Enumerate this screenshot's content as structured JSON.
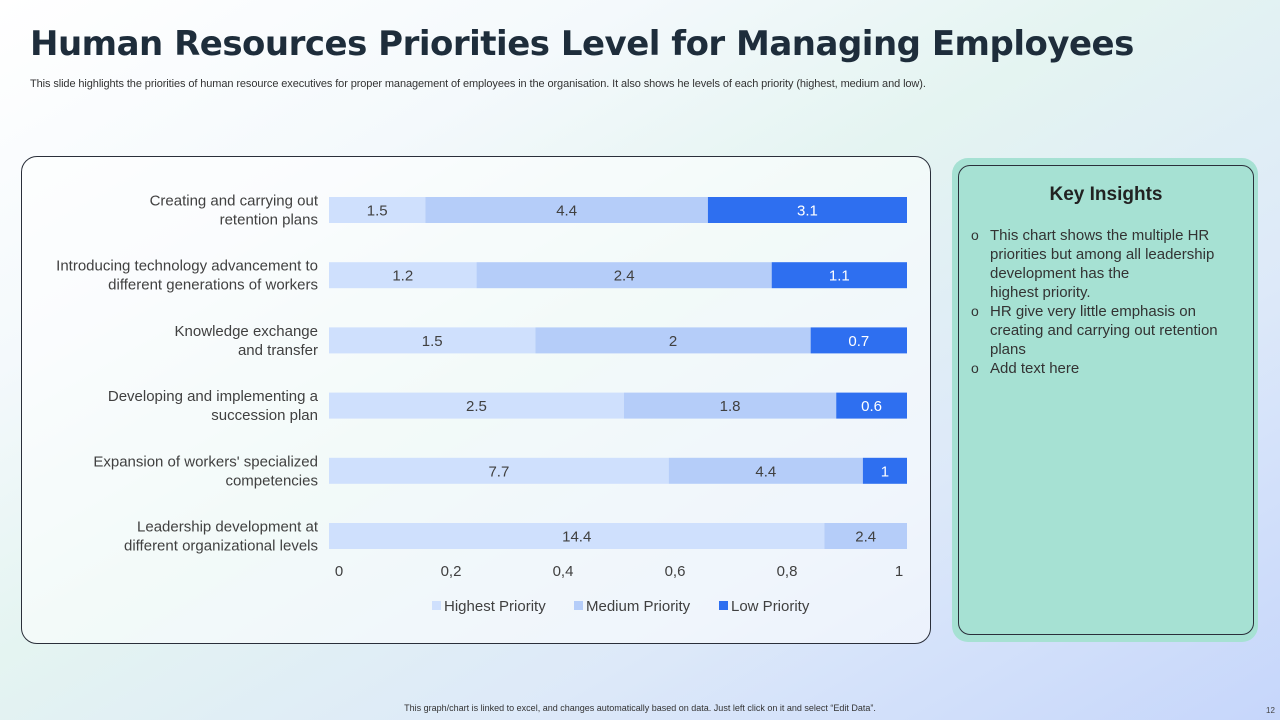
{
  "title": "Human Resources Priorities Level for Managing Employees",
  "subtitle": "This slide highlights the priorities of human resource executives for proper management of employees in the organisation. It also shows he levels of each priority (highest, medium and low).",
  "insights": {
    "title": "Key Insights",
    "bullet_glyph": "o",
    "items": [
      "This chart shows the multiple HR priorities but among all leadership development has the\nhighest priority.",
      "HR give very little  emphasis on creating and carrying out retention plans",
      "Add text here"
    ]
  },
  "footnote": "This graph/chart is linked to excel, and changes automatically based on data. Just left click on it and select “Edit Data”.",
  "page_number": "12",
  "colors": {
    "highest": "#cfe0fd",
    "medium": "#b5cdf9",
    "low": "#2e6ff0"
  },
  "chart_data": {
    "type": "bar",
    "orientation": "horizontal",
    "stacked": "100%",
    "categories": [
      [
        "Creating and carrying out",
        "retention plans"
      ],
      [
        "Introducing technology advancement to",
        "different generations of workers"
      ],
      [
        "Knowledge exchange",
        "and transfer"
      ],
      [
        "Developing and implementing a",
        "succession plan"
      ],
      [
        "Expansion of workers' specialized",
        "competencies"
      ],
      [
        "Leadership development at",
        "different organizational levels"
      ]
    ],
    "series": [
      {
        "name": "Highest Priority",
        "values": [
          1.5,
          1.2,
          1.5,
          2.5,
          7.7,
          14.4
        ],
        "labels": [
          "1.5",
          "1.2",
          "1.5",
          "2.5",
          "7.7",
          "14.4"
        ]
      },
      {
        "name": "Medium Priority",
        "values": [
          4.4,
          2.4,
          2,
          1.8,
          4.4,
          2.4
        ],
        "labels": [
          "4.4",
          "2.4",
          "2",
          "1.8",
          "4.4",
          "2.4"
        ]
      },
      {
        "name": "Low Priority",
        "values": [
          3.1,
          1.1,
          0.7,
          0.6,
          1,
          0
        ],
        "labels": [
          "3.1",
          "1.1",
          "0.7",
          "0.6",
          "1",
          ""
        ]
      }
    ],
    "xaxis": {
      "ticks": [
        0,
        0.2,
        0.4,
        0.6,
        0.8,
        1
      ],
      "tick_labels": [
        "0",
        "0,2",
        "0,4",
        "0,6",
        "0,8",
        "1"
      ],
      "range": [
        0,
        1
      ]
    },
    "legend": "bottom",
    "grid": false
  }
}
